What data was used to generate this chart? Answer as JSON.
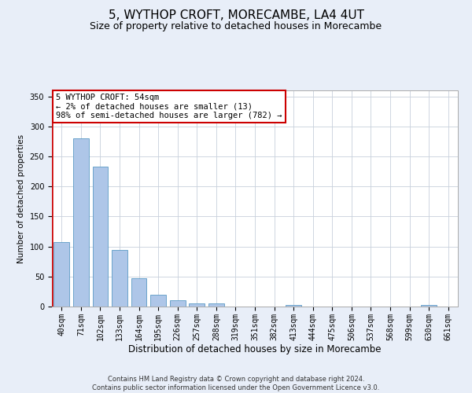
{
  "title": "5, WYTHOP CROFT, MORECAMBE, LA4 4UT",
  "subtitle": "Size of property relative to detached houses in Morecambe",
  "xlabel": "Distribution of detached houses by size in Morecambe",
  "ylabel": "Number of detached properties",
  "footer_line1": "Contains HM Land Registry data © Crown copyright and database right 2024.",
  "footer_line2": "Contains public sector information licensed under the Open Government Licence v3.0.",
  "categories": [
    "40sqm",
    "71sqm",
    "102sqm",
    "133sqm",
    "164sqm",
    "195sqm",
    "226sqm",
    "257sqm",
    "288sqm",
    "319sqm",
    "351sqm",
    "382sqm",
    "413sqm",
    "444sqm",
    "475sqm",
    "506sqm",
    "537sqm",
    "568sqm",
    "599sqm",
    "630sqm",
    "661sqm"
  ],
  "values": [
    108,
    280,
    233,
    94,
    47,
    19,
    11,
    5,
    5,
    0,
    0,
    0,
    3,
    0,
    0,
    0,
    0,
    0,
    0,
    3,
    0
  ],
  "bar_color": "#aec6e8",
  "bar_edge_color": "#5a9ac5",
  "highlight_color": "#cc0000",
  "annotation_line1": "5 WYTHOP CROFT: 54sqm",
  "annotation_line2": "← 2% of detached houses are smaller (13)",
  "annotation_line3": "98% of semi-detached houses are larger (782) →",
  "annotation_box_color": "#ffffff",
  "annotation_box_edge_color": "#cc0000",
  "ylim": [
    0,
    360
  ],
  "yticks": [
    0,
    50,
    100,
    150,
    200,
    250,
    300,
    350
  ],
  "bg_color": "#e8eef8",
  "plot_bg_color": "#ffffff",
  "grid_color": "#c8d0dc",
  "title_fontsize": 11,
  "subtitle_fontsize": 9,
  "tick_fontsize": 7,
  "ylabel_fontsize": 7.5,
  "xlabel_fontsize": 8.5,
  "footer_fontsize": 6,
  "annotation_fontsize": 7.5
}
